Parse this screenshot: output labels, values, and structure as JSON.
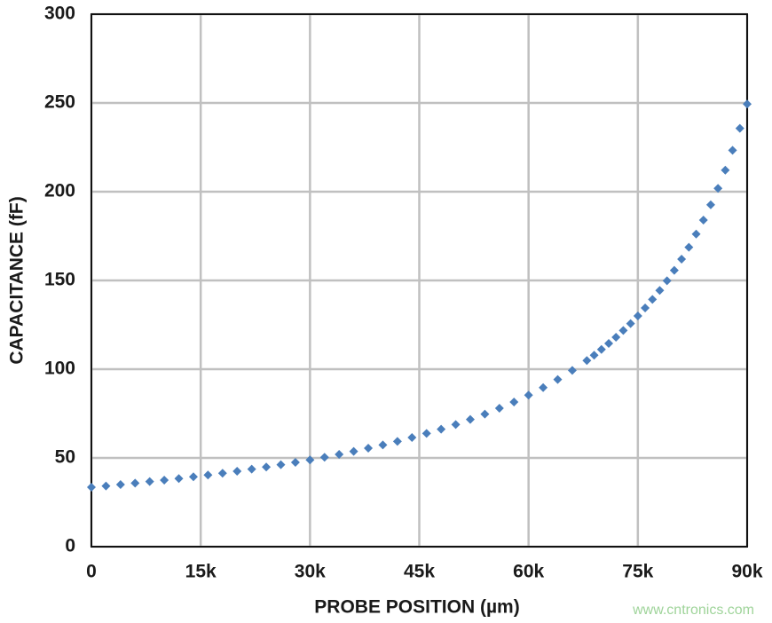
{
  "chart_data": {
    "type": "scatter",
    "x_label": "PROBE POSITION (µm)",
    "y_label": "CAPACITANCE (fF)",
    "watermark": "www.cntronics.com",
    "series": [
      {
        "name": "Capacitance",
        "color": "#4a7ebb",
        "marker": "diamond",
        "x": [
          0,
          2000,
          4000,
          6000,
          8000,
          10000,
          12000,
          14000,
          16000,
          18000,
          20000,
          22000,
          24000,
          26000,
          28000,
          30000,
          32000,
          34000,
          36000,
          38000,
          40000,
          42000,
          44000,
          46000,
          48000,
          50000,
          52000,
          54000,
          56000,
          58000,
          60000,
          62000,
          64000,
          66000,
          68000,
          69000,
          70000,
          71000,
          72000,
          73000,
          74000,
          75000,
          76000,
          77000,
          78000,
          79000,
          80000,
          81000,
          82000,
          83000,
          84000,
          85000,
          86000,
          87000,
          88000,
          89000,
          90000
        ],
        "values": [
          33.5,
          34.2,
          35.0,
          35.8,
          36.7,
          37.5,
          38.4,
          39.4,
          40.4,
          41.4,
          42.5,
          43.7,
          44.9,
          46.2,
          47.5,
          48.9,
          50.4,
          52.0,
          53.7,
          55.5,
          57.3,
          59.3,
          61.5,
          63.8,
          66.2,
          68.8,
          71.7,
          74.7,
          78.0,
          81.5,
          85.4,
          89.6,
          94.2,
          99.3,
          104.9,
          107.9,
          111.1,
          114.5,
          118.0,
          121.8,
          125.7,
          130.0,
          134.5,
          139.3,
          144.4,
          149.8,
          155.7,
          162.0,
          168.7,
          176.1,
          184.0,
          192.6,
          201.9,
          212.1,
          223.3,
          235.7,
          249.4
        ]
      }
    ],
    "xlim": [
      0,
      90000
    ],
    "xticks": [
      0,
      {
        "value": 15000,
        "label": "15k"
      },
      {
        "value": 30000,
        "label": "30k"
      },
      {
        "value": 45000,
        "label": "45k"
      },
      {
        "value": 60000,
        "label": "60k"
      },
      {
        "value": 75000,
        "label": "75k"
      },
      {
        "value": 90000,
        "label": "90k"
      }
    ],
    "ylim": [
      0,
      300
    ],
    "yticks": [
      0,
      50,
      100,
      150,
      200,
      250,
      300
    ],
    "grid": true
  }
}
